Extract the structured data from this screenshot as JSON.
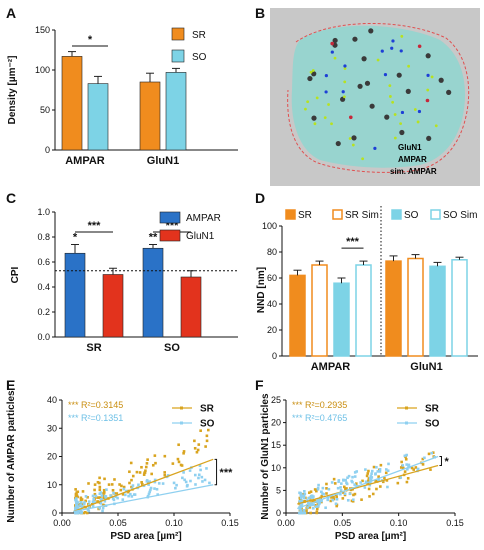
{
  "colors": {
    "sr": "#f08c1e",
    "so": "#7dd3e6",
    "ampar": "#2a72c7",
    "glun1": "#e2331d",
    "sr_dot": "#d9a41f",
    "so_dot": "#8fd0f0",
    "micro_bg": "#bdbdbd",
    "micro_fill": "#8fd6d0",
    "micro_outline": "#e05050"
  },
  "panels": {
    "A": "A",
    "B": "B",
    "C": "C",
    "D": "D",
    "E": "E",
    "F": "F"
  },
  "micrograph": {
    "glun1": "GluN1",
    "ampar": "AMPAR",
    "sim": "sim. AMPAR",
    "colors": {
      "glun1": "#c6283a",
      "ampar": "#1d3fd6",
      "sim": "#b7e21f"
    }
  },
  "chart_data": [
    {
      "id": "A",
      "type": "bar",
      "ylabel": "Density [µm⁻²]",
      "ylim": [
        0,
        150
      ],
      "yticks": [
        "0",
        "50",
        "100",
        "150"
      ],
      "categories": [
        "AMPAR",
        "GluN1"
      ],
      "series": [
        {
          "name": "SR",
          "values": [
            117,
            85
          ],
          "errors": [
            6,
            11
          ]
        },
        {
          "name": "SO",
          "values": [
            83,
            97
          ],
          "errors": [
            9,
            5
          ]
        }
      ],
      "significance": [
        {
          "label": "*",
          "between": "AMPAR SR vs SO"
        }
      ],
      "legend": "top-right"
    },
    {
      "id": "C",
      "type": "bar",
      "ylabel": "CPI",
      "ylim": [
        0,
        1.0
      ],
      "yticks": [
        "0.0",
        "0.2",
        "0.4",
        "0.6",
        "0.8",
        "1.0"
      ],
      "categories": [
        "SR",
        "SO"
      ],
      "reference_line": 0.53,
      "series": [
        {
          "name": "AMPAR",
          "values": [
            0.67,
            0.71
          ],
          "errors": [
            0.07,
            0.03
          ],
          "marks": [
            "*",
            "**"
          ]
        },
        {
          "name": "GluN1",
          "values": [
            0.5,
            0.48
          ],
          "errors": [
            0.05,
            0.05
          ]
        }
      ],
      "significance": [
        {
          "label": "***"
        },
        {
          "label": "***"
        }
      ],
      "legend": "top-right"
    },
    {
      "id": "D",
      "type": "bar",
      "ylabel": "NND [nm]",
      "ylim": [
        0,
        100
      ],
      "yticks": [
        "0",
        "20",
        "40",
        "60",
        "80",
        "100"
      ],
      "categories": [
        "AMPAR",
        "GluN1"
      ],
      "series": [
        {
          "name": "SR",
          "values": [
            62,
            73
          ],
          "errors": [
            4,
            4
          ]
        },
        {
          "name": "SR Sim",
          "values": [
            70,
            75
          ],
          "errors": [
            3,
            3
          ]
        },
        {
          "name": "SO",
          "values": [
            56,
            69
          ],
          "errors": [
            4,
            3
          ]
        },
        {
          "name": "SO Sim",
          "values": [
            70,
            74
          ],
          "errors": [
            3,
            2
          ]
        }
      ],
      "significance": [
        {
          "label": "***",
          "between": "AMPAR SO vs SO Sim"
        }
      ],
      "legend": "top"
    },
    {
      "id": "E",
      "type": "scatter",
      "xlabel": "PSD area [µm²]",
      "ylabel": "Number of AMPAR particles",
      "xlim": [
        0,
        0.15
      ],
      "ylim": [
        0,
        40
      ],
      "xticks": [
        "0.00",
        "0.05",
        "0.10",
        "0.15"
      ],
      "yticks": [
        "0",
        "10",
        "20",
        "30",
        "40"
      ],
      "series": [
        {
          "name": "SR",
          "r2": "*** R²=0.3145",
          "fit": [
            [
              0.01,
              0.5
            ],
            [
              0.135,
              19
            ]
          ]
        },
        {
          "name": "SO",
          "r2": "*** R²=0.1351",
          "fit": [
            [
              0.01,
              0.5
            ],
            [
              0.135,
              10
            ]
          ]
        }
      ],
      "significance": [
        {
          "label": "***"
        }
      ],
      "legend": "right"
    },
    {
      "id": "F",
      "type": "scatter",
      "xlabel": "PSD area [µm²]",
      "ylabel": "Number of GluN1 particles",
      "xlim": [
        0,
        0.15
      ],
      "ylim": [
        0,
        25
      ],
      "xticks": [
        "0.00",
        "0.05",
        "0.10",
        "0.15"
      ],
      "yticks": [
        "0",
        "5",
        "10",
        "15",
        "20",
        "25"
      ],
      "series": [
        {
          "name": "SR",
          "r2": "*** R²=0.2935",
          "fit": [
            [
              0.01,
              2
            ],
            [
              0.135,
              10.5
            ]
          ]
        },
        {
          "name": "SO",
          "r2": "*** R²=0.4765",
          "fit": [
            [
              0.01,
              1
            ],
            [
              0.135,
              12.5
            ]
          ]
        }
      ],
      "significance": [
        {
          "label": "*"
        }
      ],
      "legend": "right"
    }
  ]
}
